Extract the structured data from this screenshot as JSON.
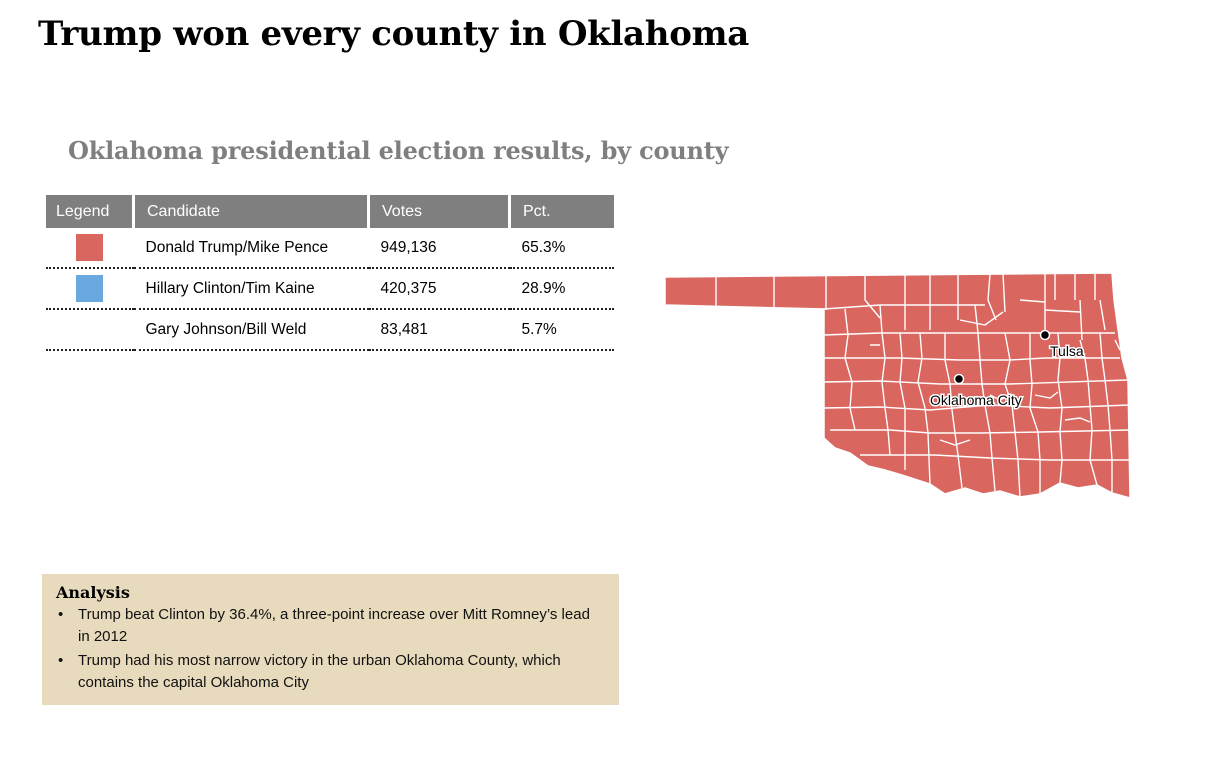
{
  "title": "Trump won every county in Oklahoma",
  "subtitle": "Oklahoma presidential election results, by county",
  "table": {
    "headers": [
      "Legend",
      "Candidate",
      "Votes",
      "Pct."
    ],
    "rows": [
      {
        "candidate": "Donald Trump/Mike Pence",
        "votes": "949,136",
        "pct": "65.3%",
        "color": "#d9665f"
      },
      {
        "candidate": "Hillary Clinton/Tim Kaine",
        "votes": "420,375",
        "pct": "28.9%",
        "color": "#6aa8e0"
      },
      {
        "candidate": "Gary Johnson/Bill Weld",
        "votes": "83,481",
        "pct": "5.7%",
        "color": ""
      }
    ]
  },
  "map": {
    "fill_color": "#d9665f",
    "border_color": "#ffffff",
    "cities": [
      {
        "name": "Tulsa"
      },
      {
        "name": "Oklahoma City"
      }
    ]
  },
  "analysis": {
    "heading": "Analysis",
    "bullets": [
      "Trump beat Clinton by 36.4%, a three-point increase over Mitt Romney’s lead in 2012",
      "Trump had his most narrow victory in the urban Oklahoma County, which contains the capital Oklahoma City"
    ]
  }
}
